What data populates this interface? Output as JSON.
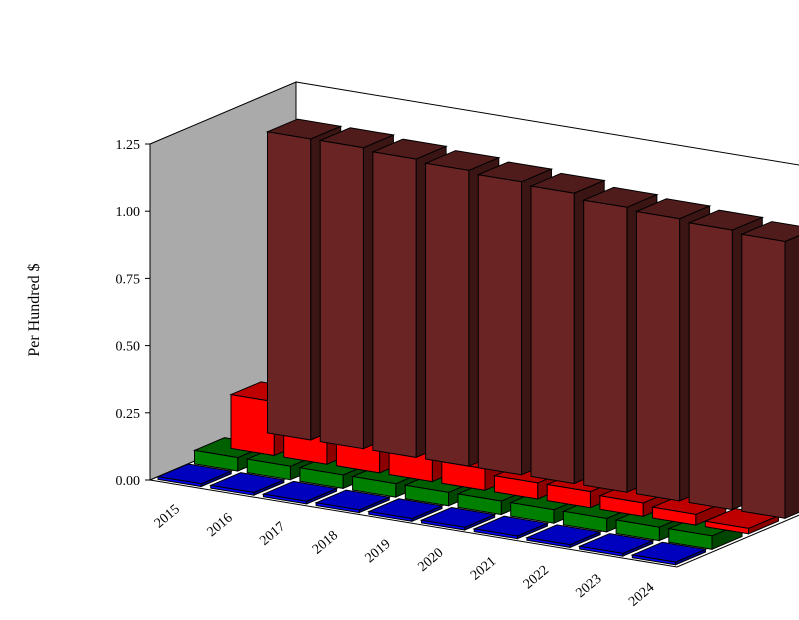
{
  "chart_data": {
    "type": "bar",
    "style": "3d-depth",
    "ylabel": "Per Hundred $",
    "xlabel": "",
    "title": "",
    "ylim": [
      0,
      1.25
    ],
    "yticks": [
      "0.00",
      "0.25",
      "0.50",
      "0.75",
      "1.00",
      "1.25"
    ],
    "categories": [
      "2015",
      "2016",
      "2017",
      "2018",
      "2019",
      "2020",
      "2021",
      "2022",
      "2023",
      "2024"
    ],
    "series": [
      {
        "values": [
          1.12,
          1.12,
          1.11,
          1.1,
          1.09,
          1.08,
          1.06,
          1.05,
          1.04,
          1.03
        ],
        "color": "#6b2424"
      },
      {
        "values": [
          0.2,
          0.17,
          0.14,
          0.11,
          0.08,
          0.06,
          0.06,
          0.05,
          0.04,
          0.02
        ],
        "color": "#ff0000"
      },
      {
        "values": [
          0.05,
          0.05,
          0.05,
          0.05,
          0.05,
          0.05,
          0.05,
          0.05,
          0.05,
          0.05
        ],
        "color": "#008000"
      },
      {
        "values": [
          0.01,
          0.01,
          0.01,
          0.01,
          0.01,
          0.01,
          0.01,
          0.01,
          0.01,
          0.01
        ],
        "color": "#0000ff"
      }
    ],
    "grid": false,
    "legend": "none"
  }
}
